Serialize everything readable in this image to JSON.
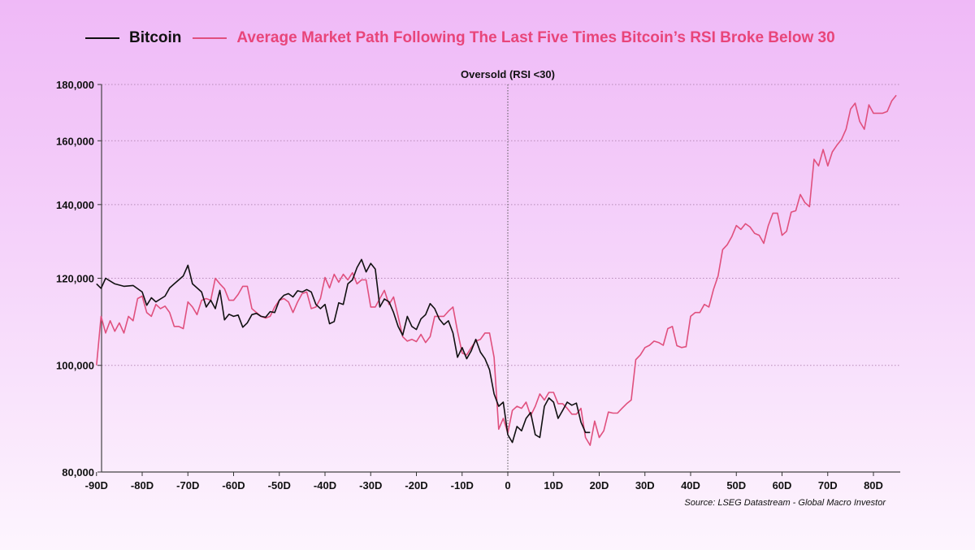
{
  "chart_data": {
    "type": "line",
    "annotation": "Oversold (RSI <30)",
    "annotation_x": 0,
    "source": "Source: LSEG Datastream - Global Macro Investor",
    "xlim": [
      -90,
      85
    ],
    "ylim": [
      80000,
      180000
    ],
    "yscale": "log",
    "grid": "horizontal dotted",
    "legend_position": "top",
    "xticks": [
      -90,
      -80,
      -70,
      -60,
      -50,
      -40,
      -30,
      -20,
      -10,
      0,
      10,
      20,
      30,
      40,
      50,
      60,
      70,
      80
    ],
    "xtick_labels": [
      "-90D",
      "-80D",
      "-70D",
      "-60D",
      "-50D",
      "-40D",
      "-30D",
      "-20D",
      "-10D",
      "0",
      "10D",
      "20D",
      "30D",
      "40D",
      "50D",
      "60D",
      "70D",
      "80D"
    ],
    "yticks": [
      80000,
      100000,
      120000,
      140000,
      160000,
      180000
    ],
    "ytick_labels": [
      "80,000",
      "100,000",
      "120,000",
      "140,000",
      "160,000",
      "180,000"
    ],
    "series": [
      {
        "name": "Bitcoin",
        "color": "#111111",
        "x_start": -90,
        "values": [
          118600,
          117500,
          120000,
          119300,
          118600,
          118300,
          118000,
          118100,
          118200,
          117400,
          116600,
          113400,
          115200,
          114200,
          114900,
          115600,
          117600,
          118600,
          119600,
          120600,
          123300,
          118600,
          117600,
          116600,
          113000,
          114600,
          112600,
          117000,
          110000,
          111300,
          110800,
          111100,
          108300,
          109300,
          111200,
          111500,
          110800,
          110600,
          111900,
          111700,
          114600,
          115800,
          116200,
          115400,
          116900,
          116600,
          117200,
          116600,
          113600,
          112600,
          113600,
          109100,
          109600,
          114000,
          113600,
          118600,
          119600,
          122700,
          124800,
          121600,
          123800,
          122300,
          113000,
          114900,
          114200,
          111700,
          108500,
          106500,
          110800,
          108500,
          107800,
          110200,
          111200,
          113800,
          112600,
          110200,
          108900,
          109800,
          107000,
          101700,
          103800,
          101400,
          103100,
          105600,
          102800,
          101400,
          99100,
          94200,
          91800,
          92600,
          86500,
          85100,
          88000,
          87200,
          89500,
          90600,
          86500,
          86000,
          91800,
          93400,
          92600,
          89500,
          91000,
          92600,
          92000,
          92400,
          88800,
          86900,
          86900
        ]
      },
      {
        "name": "Average Market Path Following The Last Five Times Bitcoin’s RSI Broke Below 30",
        "color": "#e0507e",
        "x_start": -90,
        "values": [
          100000,
          110800,
          107000,
          109800,
          107400,
          109300,
          107000,
          110800,
          109800,
          115000,
          115600,
          111700,
          110800,
          113600,
          112600,
          113200,
          111700,
          108500,
          108500,
          108000,
          114200,
          113000,
          111200,
          114600,
          115000,
          114600,
          120000,
          118600,
          117400,
          114600,
          114600,
          116000,
          118000,
          118000,
          112600,
          111700,
          110800,
          110400,
          110800,
          113000,
          114600,
          115000,
          114200,
          111700,
          114200,
          116200,
          116600,
          112600,
          113000,
          115000,
          120200,
          117600,
          121000,
          119000,
          121000,
          119600,
          121400,
          118600,
          119600,
          119600,
          113000,
          113000,
          115000,
          117000,
          113600,
          115400,
          110800,
          106200,
          105200,
          105600,
          105100,
          106700,
          104900,
          106200,
          110800,
          110800,
          110800,
          112000,
          113000,
          107400,
          102600,
          102200,
          103800,
          105200,
          105600,
          107000,
          107000,
          101700,
          87500,
          89500,
          86800,
          91000,
          91800,
          91400,
          92600,
          90000,
          91800,
          94200,
          93000,
          94500,
          94500,
          92300,
          92300,
          91400,
          90300,
          90300,
          91400,
          86000,
          84600,
          89000,
          86000,
          87200,
          90700,
          90500,
          90500,
          91400,
          92300,
          93000,
          101200,
          102200,
          103800,
          104300,
          105200,
          104900,
          104300,
          108000,
          108500,
          104200,
          103800,
          104000,
          110800,
          111700,
          111700,
          113600,
          113000,
          117200,
          120600,
          127400,
          128700,
          130900,
          134000,
          132900,
          134500,
          133600,
          131800,
          131300,
          129100,
          134000,
          137500,
          137500,
          131300,
          132400,
          137800,
          138200,
          143000,
          140600,
          139400,
          153900,
          151800,
          157100,
          151800,
          156300,
          158500,
          160400,
          163900,
          171000,
          173100,
          166600,
          163900,
          172500,
          169500,
          169500,
          169500,
          170100,
          173900,
          176000
        ]
      }
    ]
  }
}
